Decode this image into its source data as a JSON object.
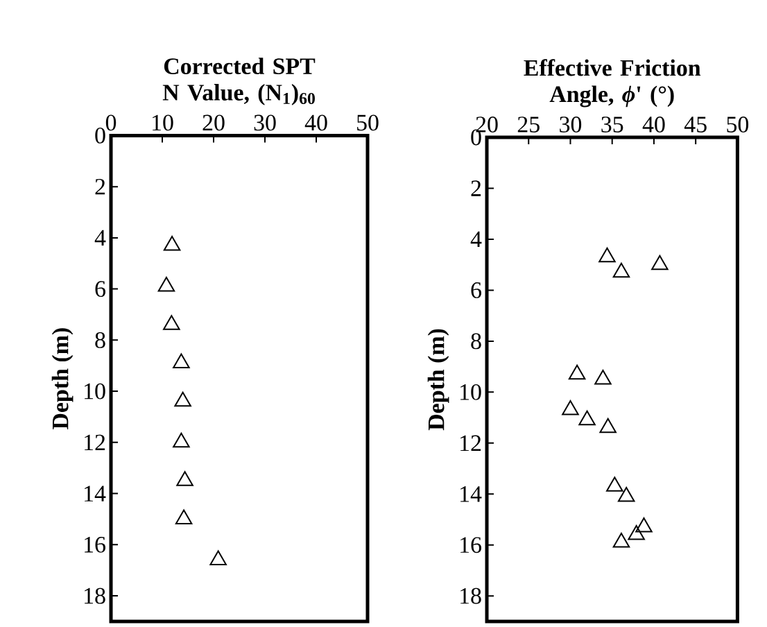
{
  "chart_data": [
    {
      "type": "scatter",
      "xlabel": "Corrected SPT N Value, (N$_{1}$)$_{60}$",
      "ylabel": "Depth (m)",
      "marker": "triangle",
      "xlim": [
        0,
        50
      ],
      "xticks": [
        0,
        10,
        20,
        30,
        40,
        50
      ],
      "ylim": [
        19,
        0
      ],
      "yticks": [
        0,
        2,
        4,
        6,
        8,
        10,
        12,
        14,
        16,
        18
      ],
      "series": [
        {
          "color": "#000000",
          "x": [
            11.9,
            10.8,
            11.8,
            13.7,
            14.0,
            13.7,
            14.4,
            14.2,
            20.9
          ],
          "values": [
            4.3,
            5.9,
            7.4,
            8.9,
            10.4,
            12.0,
            13.5,
            15.0,
            16.6
          ]
        }
      ]
    },
    {
      "type": "scatter",
      "xlabel": "Effective Friction Angle, *ϕ*' (°)",
      "ylabel": "Depth (m)",
      "marker": "triangle",
      "xlim": [
        20,
        50
      ],
      "xticks": [
        20,
        25,
        30,
        35,
        40,
        45,
        50
      ],
      "ylim": [
        19,
        0
      ],
      "yticks": [
        0,
        2,
        4,
        6,
        8,
        10,
        12,
        14,
        16,
        18
      ],
      "series": [
        {
          "color": "#000000",
          "x": [
            34.4,
            40.7,
            36.1,
            30.8,
            33.9,
            30.0,
            32.0,
            34.5,
            35.3,
            36.7,
            38.8,
            37.9,
            36.1
          ],
          "values": [
            4.7,
            5.0,
            5.3,
            9.3,
            9.5,
            10.7,
            11.1,
            11.4,
            13.7,
            14.1,
            15.3,
            15.6,
            15.9
          ]
        }
      ]
    }
  ]
}
